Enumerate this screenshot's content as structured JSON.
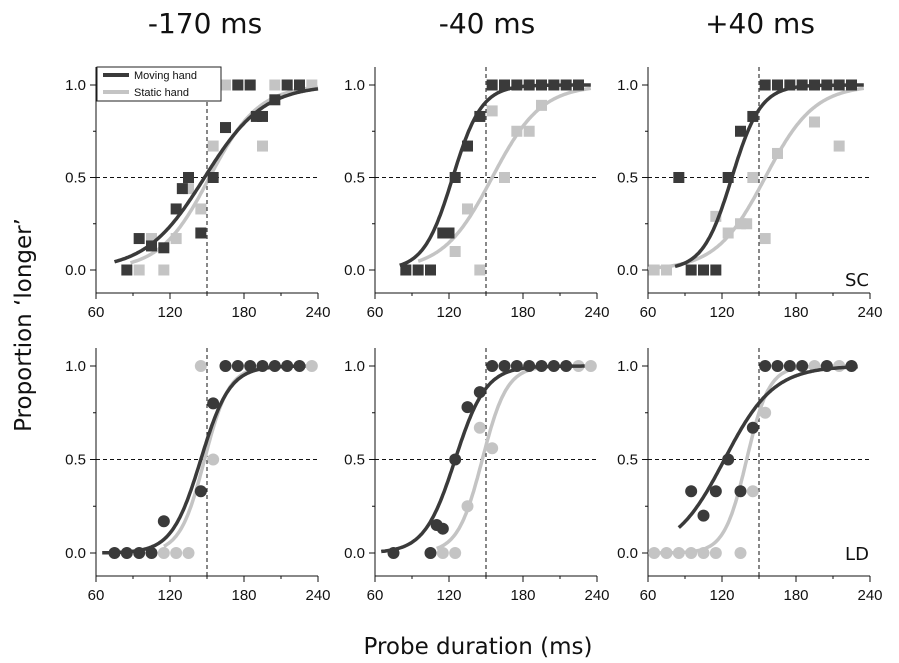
{
  "figure": {
    "columns": [
      "-170 ms",
      "-40 ms",
      "+40 ms"
    ],
    "rows": [
      "SC",
      "LD"
    ],
    "xlabel": "Probe duration (ms)",
    "ylabel": "Proportion ‘longer’"
  },
  "legend": {
    "moving": "Moving hand",
    "static": "Static hand",
    "placement": "top-left of first panel"
  },
  "colors": {
    "moving": "#3a3a3a",
    "static": "#c4c4c4",
    "reference": "#111111"
  },
  "chart_data": [
    {
      "type": "scatter",
      "row": "SC",
      "column": "-170 ms",
      "marker": "square",
      "xlim": [
        60,
        240
      ],
      "ylim": [
        0,
        1
      ],
      "xticks": [
        "60",
        "120",
        "180",
        "240"
      ],
      "yticks": [
        "0.0",
        "0.5",
        "1.0"
      ],
      "reference": {
        "x": 150,
        "y": 0.5
      },
      "series": [
        {
          "name": "Moving hand",
          "points": [
            [
              85,
              0
            ],
            [
              95,
              0.17
            ],
            [
              105,
              0.13
            ],
            [
              115,
              0.12
            ],
            [
              125,
              0.33
            ],
            [
              130,
              0.44
            ],
            [
              135,
              0.5
            ],
            [
              145,
              0.2
            ],
            [
              155,
              0.5
            ],
            [
              165,
              0.77
            ],
            [
              175,
              1.0
            ],
            [
              185,
              1.0
            ],
            [
              190,
              0.83
            ],
            [
              195,
              0.83
            ],
            [
              205,
              0.92
            ],
            [
              215,
              1.0
            ],
            [
              225,
              1.0
            ]
          ],
          "fit": {
            "pse": 148,
            "slope": 0.042,
            "x_from": 75,
            "x_to": 240
          }
        },
        {
          "name": "Static hand",
          "points": [
            [
              95,
              0
            ],
            [
              105,
              0.17
            ],
            [
              115,
              0
            ],
            [
              125,
              0.17
            ],
            [
              135,
              0.44
            ],
            [
              145,
              0.33
            ],
            [
              155,
              0.67
            ],
            [
              165,
              1.0
            ],
            [
              175,
              1.0
            ],
            [
              185,
              1.0
            ],
            [
              195,
              0.67
            ],
            [
              205,
              1.0
            ],
            [
              215,
              1.0
            ],
            [
              225,
              1.0
            ],
            [
              235,
              1.0
            ]
          ],
          "fit": {
            "pse": 152,
            "slope": 0.05,
            "x_from": 88,
            "x_to": 240
          }
        }
      ]
    },
    {
      "type": "scatter",
      "row": "SC",
      "column": "-40 ms",
      "marker": "square",
      "xlim": [
        60,
        240
      ],
      "ylim": [
        0,
        1
      ],
      "xticks": [
        "60",
        "120",
        "180",
        "240"
      ],
      "yticks": [
        "0.0",
        "0.5",
        "1.0"
      ],
      "reference": {
        "x": 150,
        "y": 0.5
      },
      "series": [
        {
          "name": "Moving hand",
          "points": [
            [
              85,
              0
            ],
            [
              95,
              0
            ],
            [
              105,
              0
            ],
            [
              115,
              0.2
            ],
            [
              120,
              0.2
            ],
            [
              125,
              0.5
            ],
            [
              135,
              0.67
            ],
            [
              145,
              0.83
            ],
            [
              155,
              1.0
            ],
            [
              165,
              1.0
            ],
            [
              175,
              1.0
            ],
            [
              185,
              1.0
            ],
            [
              195,
              1.0
            ],
            [
              205,
              1.0
            ],
            [
              215,
              1.0
            ],
            [
              225,
              1.0
            ]
          ],
          "fit": {
            "pse": 123,
            "slope": 0.085,
            "x_from": 80,
            "x_to": 235
          }
        },
        {
          "name": "Static hand",
          "points": [
            [
              105,
              0
            ],
            [
              115,
              0.2
            ],
            [
              125,
              0.1
            ],
            [
              135,
              0.33
            ],
            [
              145,
              0
            ],
            [
              155,
              0.86
            ],
            [
              165,
              0.5
            ],
            [
              175,
              0.75
            ],
            [
              185,
              0.75
            ],
            [
              195,
              0.89
            ],
            [
              205,
              1.0
            ]
          ],
          "fit": {
            "pse": 155,
            "slope": 0.05,
            "x_from": 95,
            "x_to": 235
          }
        }
      ]
    },
    {
      "type": "scatter",
      "row": "SC",
      "column": "+40 ms",
      "marker": "square",
      "xlim": [
        60,
        240
      ],
      "ylim": [
        0,
        1
      ],
      "xticks": [
        "60",
        "120",
        "180",
        "240"
      ],
      "yticks": [
        "0.0",
        "0.5",
        "1.0"
      ],
      "reference": {
        "x": 150,
        "y": 0.5
      },
      "series": [
        {
          "name": "Moving hand",
          "points": [
            [
              85,
              0.5
            ],
            [
              95,
              0
            ],
            [
              105,
              0
            ],
            [
              115,
              0
            ],
            [
              125,
              0.5
            ],
            [
              135,
              0.75
            ],
            [
              145,
              0.83
            ],
            [
              155,
              1.0
            ],
            [
              165,
              1.0
            ],
            [
              175,
              1.0
            ],
            [
              185,
              1.0
            ],
            [
              195,
              1.0
            ],
            [
              205,
              1.0
            ],
            [
              215,
              1.0
            ],
            [
              225,
              1.0
            ]
          ],
          "fit": {
            "pse": 128,
            "slope": 0.085,
            "x_from": 82,
            "x_to": 235
          }
        },
        {
          "name": "Static hand",
          "points": [
            [
              65,
              0
            ],
            [
              75,
              0
            ],
            [
              115,
              0.29
            ],
            [
              125,
              0.2
            ],
            [
              135,
              0.25
            ],
            [
              140,
              0.25
            ],
            [
              145,
              0.5
            ],
            [
              155,
              0.17
            ],
            [
              165,
              0.63
            ],
            [
              195,
              0.8
            ],
            [
              215,
              0.67
            ]
          ],
          "fit": {
            "pse": 155,
            "slope": 0.05,
            "x_from": 60,
            "x_to": 235
          }
        }
      ]
    },
    {
      "type": "scatter",
      "row": "LD",
      "column": "-170 ms",
      "marker": "circle",
      "xlim": [
        60,
        240
      ],
      "ylim": [
        0,
        1
      ],
      "xticks": [
        "60",
        "120",
        "180",
        "240"
      ],
      "yticks": [
        "0.0",
        "0.5",
        "1.0"
      ],
      "reference": {
        "x": 150,
        "y": 0.5
      },
      "series": [
        {
          "name": "Moving hand",
          "points": [
            [
              75,
              0
            ],
            [
              85,
              0
            ],
            [
              95,
              0
            ],
            [
              105,
              0
            ],
            [
              115,
              0.17
            ],
            [
              145,
              0.33
            ],
            [
              155,
              0.8
            ],
            [
              165,
              1.0
            ],
            [
              175,
              1.0
            ],
            [
              185,
              1.0
            ],
            [
              195,
              1.0
            ],
            [
              205,
              1.0
            ],
            [
              215,
              1.0
            ],
            [
              225,
              1.0
            ]
          ],
          "fit": {
            "pse": 145,
            "slope": 0.085,
            "x_from": 65,
            "x_to": 230
          }
        },
        {
          "name": "Static hand",
          "points": [
            [
              115,
              0
            ],
            [
              125,
              0
            ],
            [
              135,
              0
            ],
            [
              145,
              1.0
            ],
            [
              155,
              0.5
            ],
            [
              165,
              1.0
            ],
            [
              235,
              1.0
            ]
          ],
          "fit": {
            "pse": 148,
            "slope": 0.1,
            "x_from": 115,
            "x_to": 230
          }
        }
      ]
    },
    {
      "type": "scatter",
      "row": "LD",
      "column": "-40 ms",
      "marker": "circle",
      "xlim": [
        60,
        240
      ],
      "ylim": [
        0,
        1
      ],
      "xticks": [
        "60",
        "120",
        "180",
        "240"
      ],
      "yticks": [
        "0.0",
        "0.5",
        "1.0"
      ],
      "reference": {
        "x": 150,
        "y": 0.5
      },
      "series": [
        {
          "name": "Moving hand",
          "points": [
            [
              75,
              0
            ],
            [
              105,
              0
            ],
            [
              110,
              0.15
            ],
            [
              115,
              0.13
            ],
            [
              125,
              0.5
            ],
            [
              135,
              0.78
            ],
            [
              145,
              0.86
            ],
            [
              155,
              1.0
            ],
            [
              165,
              1.0
            ],
            [
              175,
              1.0
            ],
            [
              185,
              1.0
            ],
            [
              195,
              1.0
            ],
            [
              205,
              1.0
            ],
            [
              215,
              1.0
            ]
          ],
          "fit": {
            "pse": 125,
            "slope": 0.08,
            "x_from": 65,
            "x_to": 230
          }
        },
        {
          "name": "Static hand",
          "points": [
            [
              105,
              0
            ],
            [
              115,
              0
            ],
            [
              125,
              0
            ],
            [
              135,
              0.25
            ],
            [
              145,
              0.67
            ],
            [
              155,
              0.56
            ],
            [
              165,
              1.0
            ],
            [
              225,
              1.0
            ],
            [
              235,
              1.0
            ]
          ],
          "fit": {
            "pse": 147,
            "slope": 0.1,
            "x_from": 110,
            "x_to": 230
          }
        }
      ]
    },
    {
      "type": "scatter",
      "row": "LD",
      "column": "+40 ms",
      "marker": "circle",
      "xlim": [
        60,
        240
      ],
      "ylim": [
        0,
        1
      ],
      "xticks": [
        "60",
        "120",
        "180",
        "240"
      ],
      "yticks": [
        "0.0",
        "0.5",
        "1.0"
      ],
      "reference": {
        "x": 150,
        "y": 0.5
      },
      "series": [
        {
          "name": "Moving hand",
          "points": [
            [
              95,
              0.33
            ],
            [
              105,
              0.2
            ],
            [
              115,
              0.33
            ],
            [
              125,
              0.5
            ],
            [
              135,
              0.33
            ],
            [
              145,
              0.67
            ],
            [
              155,
              1.0
            ],
            [
              165,
              1.0
            ],
            [
              175,
              1.0
            ],
            [
              185,
              1.0
            ],
            [
              205,
              1.0
            ],
            [
              225,
              1.0
            ]
          ],
          "fit": {
            "pse": 122,
            "slope": 0.05,
            "x_from": 85,
            "x_to": 230
          }
        },
        {
          "name": "Static hand",
          "points": [
            [
              65,
              0
            ],
            [
              75,
              0
            ],
            [
              85,
              0
            ],
            [
              95,
              0
            ],
            [
              105,
              0
            ],
            [
              115,
              0
            ],
            [
              135,
              0
            ],
            [
              145,
              0.33
            ],
            [
              155,
              0.75
            ],
            [
              195,
              1.0
            ],
            [
              215,
              1.0
            ]
          ],
          "fit": {
            "pse": 140,
            "slope": 0.11,
            "x_from": 65,
            "x_to": 230
          }
        }
      ]
    }
  ]
}
